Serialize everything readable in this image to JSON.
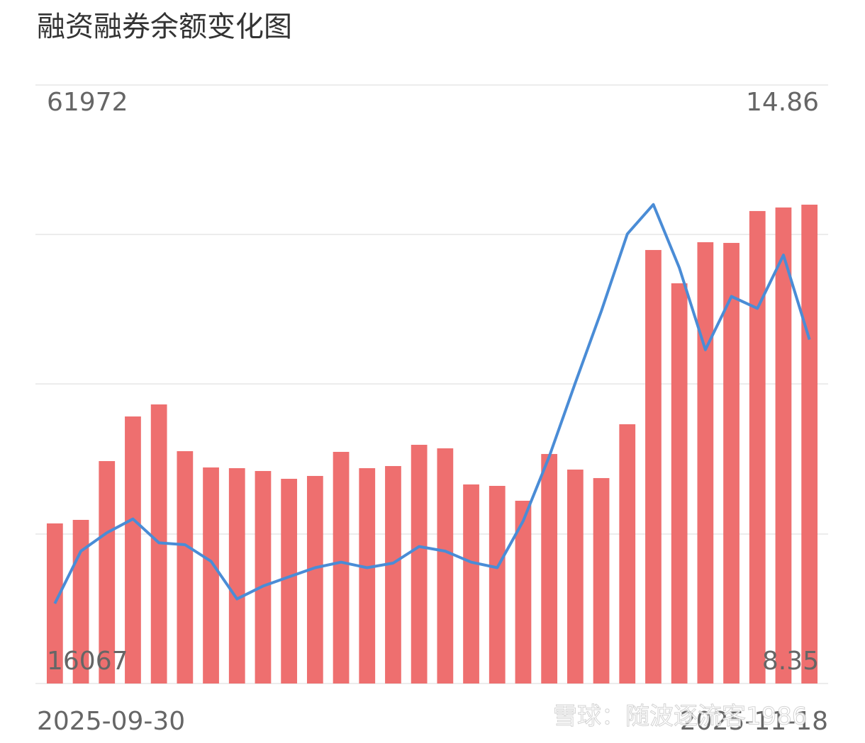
{
  "chart_data": {
    "type": "combo",
    "title": "融资融券余额变化图",
    "categories": [
      "2025-09-30",
      null,
      null,
      null,
      null,
      null,
      null,
      null,
      null,
      null,
      null,
      null,
      null,
      null,
      null,
      null,
      null,
      null,
      null,
      null,
      null,
      null,
      null,
      null,
      null,
      null,
      null,
      null,
      null,
      "2025-11-18"
    ],
    "series": [
      {
        "type": "bar",
        "color": "#ee6f6f",
        "values": [
          28345,
          28617,
          33126,
          36549,
          37472,
          33887,
          32638,
          32583,
          32366,
          31768,
          31986,
          33833,
          32583,
          32746,
          34376,
          34105,
          31334,
          31225,
          30084,
          33670,
          32475,
          31823,
          35952,
          49317,
          46763,
          49915,
          49860,
          52305,
          52577,
          52794
        ]
      },
      {
        "type": "line",
        "axis": "y2",
        "color": "#4a8cd6",
        "values": [
          9.22,
          9.79,
          9.99,
          10.14,
          9.88,
          9.86,
          9.68,
          9.27,
          9.41,
          9.51,
          9.61,
          9.67,
          9.61,
          9.66,
          9.84,
          9.79,
          9.67,
          9.61,
          10.12,
          10.82,
          11.62,
          12.4,
          13.24,
          13.56,
          12.87,
          11.98,
          12.56,
          12.43,
          13.01,
          12.09
        ]
      }
    ],
    "ylim": [
      16067,
      61972
    ],
    "yticks": [
      16067,
      61972
    ],
    "y2lim": [
      8.35,
      14.86
    ],
    "y2ticks": [
      8.35,
      14.86
    ],
    "grid": true,
    "watermark": "雪球：随波逐流客1986"
  }
}
